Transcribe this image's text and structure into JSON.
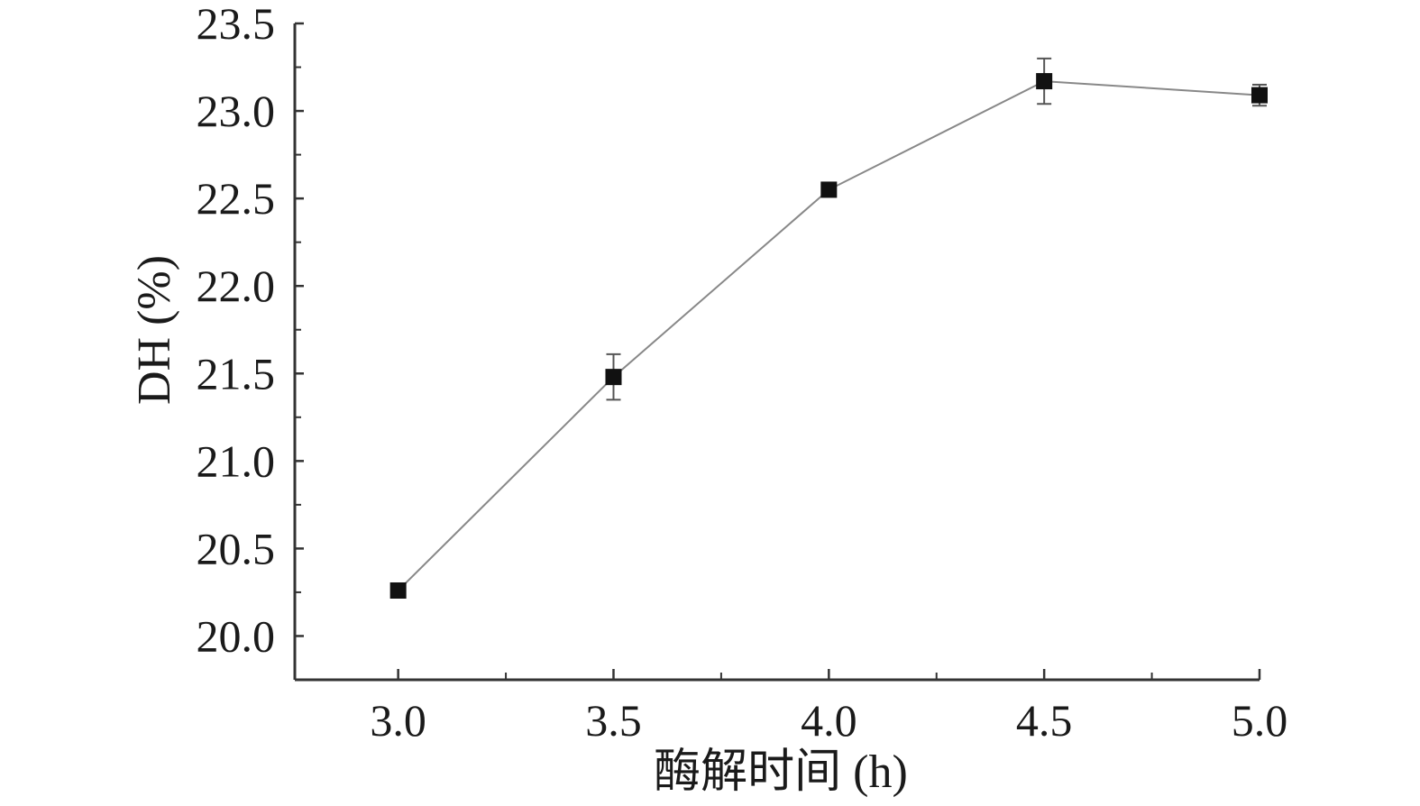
{
  "chart_data": {
    "type": "line",
    "xlabel": "酶解时间 (h)",
    "ylabel": "DH (%)",
    "xlim": [
      2.76,
      5.0
    ],
    "ylim": [
      19.75,
      23.5
    ],
    "x_ticks": [
      "3.0",
      "3.5",
      "4.0",
      "4.5",
      "5.0"
    ],
    "y_ticks": [
      "20.0",
      "20.5",
      "21.0",
      "21.5",
      "22.0",
      "22.5",
      "23.0",
      "23.5"
    ],
    "x": [
      3.0,
      3.5,
      4.0,
      4.5,
      5.0
    ],
    "y": [
      20.26,
      21.48,
      22.55,
      23.17,
      23.09
    ],
    "error": [
      0.0,
      0.13,
      0.0,
      0.13,
      0.06
    ],
    "grid": false,
    "colors": {
      "axis": "#333333",
      "line": "#888888",
      "marker": "#111111",
      "errorbar": "#555555"
    }
  }
}
